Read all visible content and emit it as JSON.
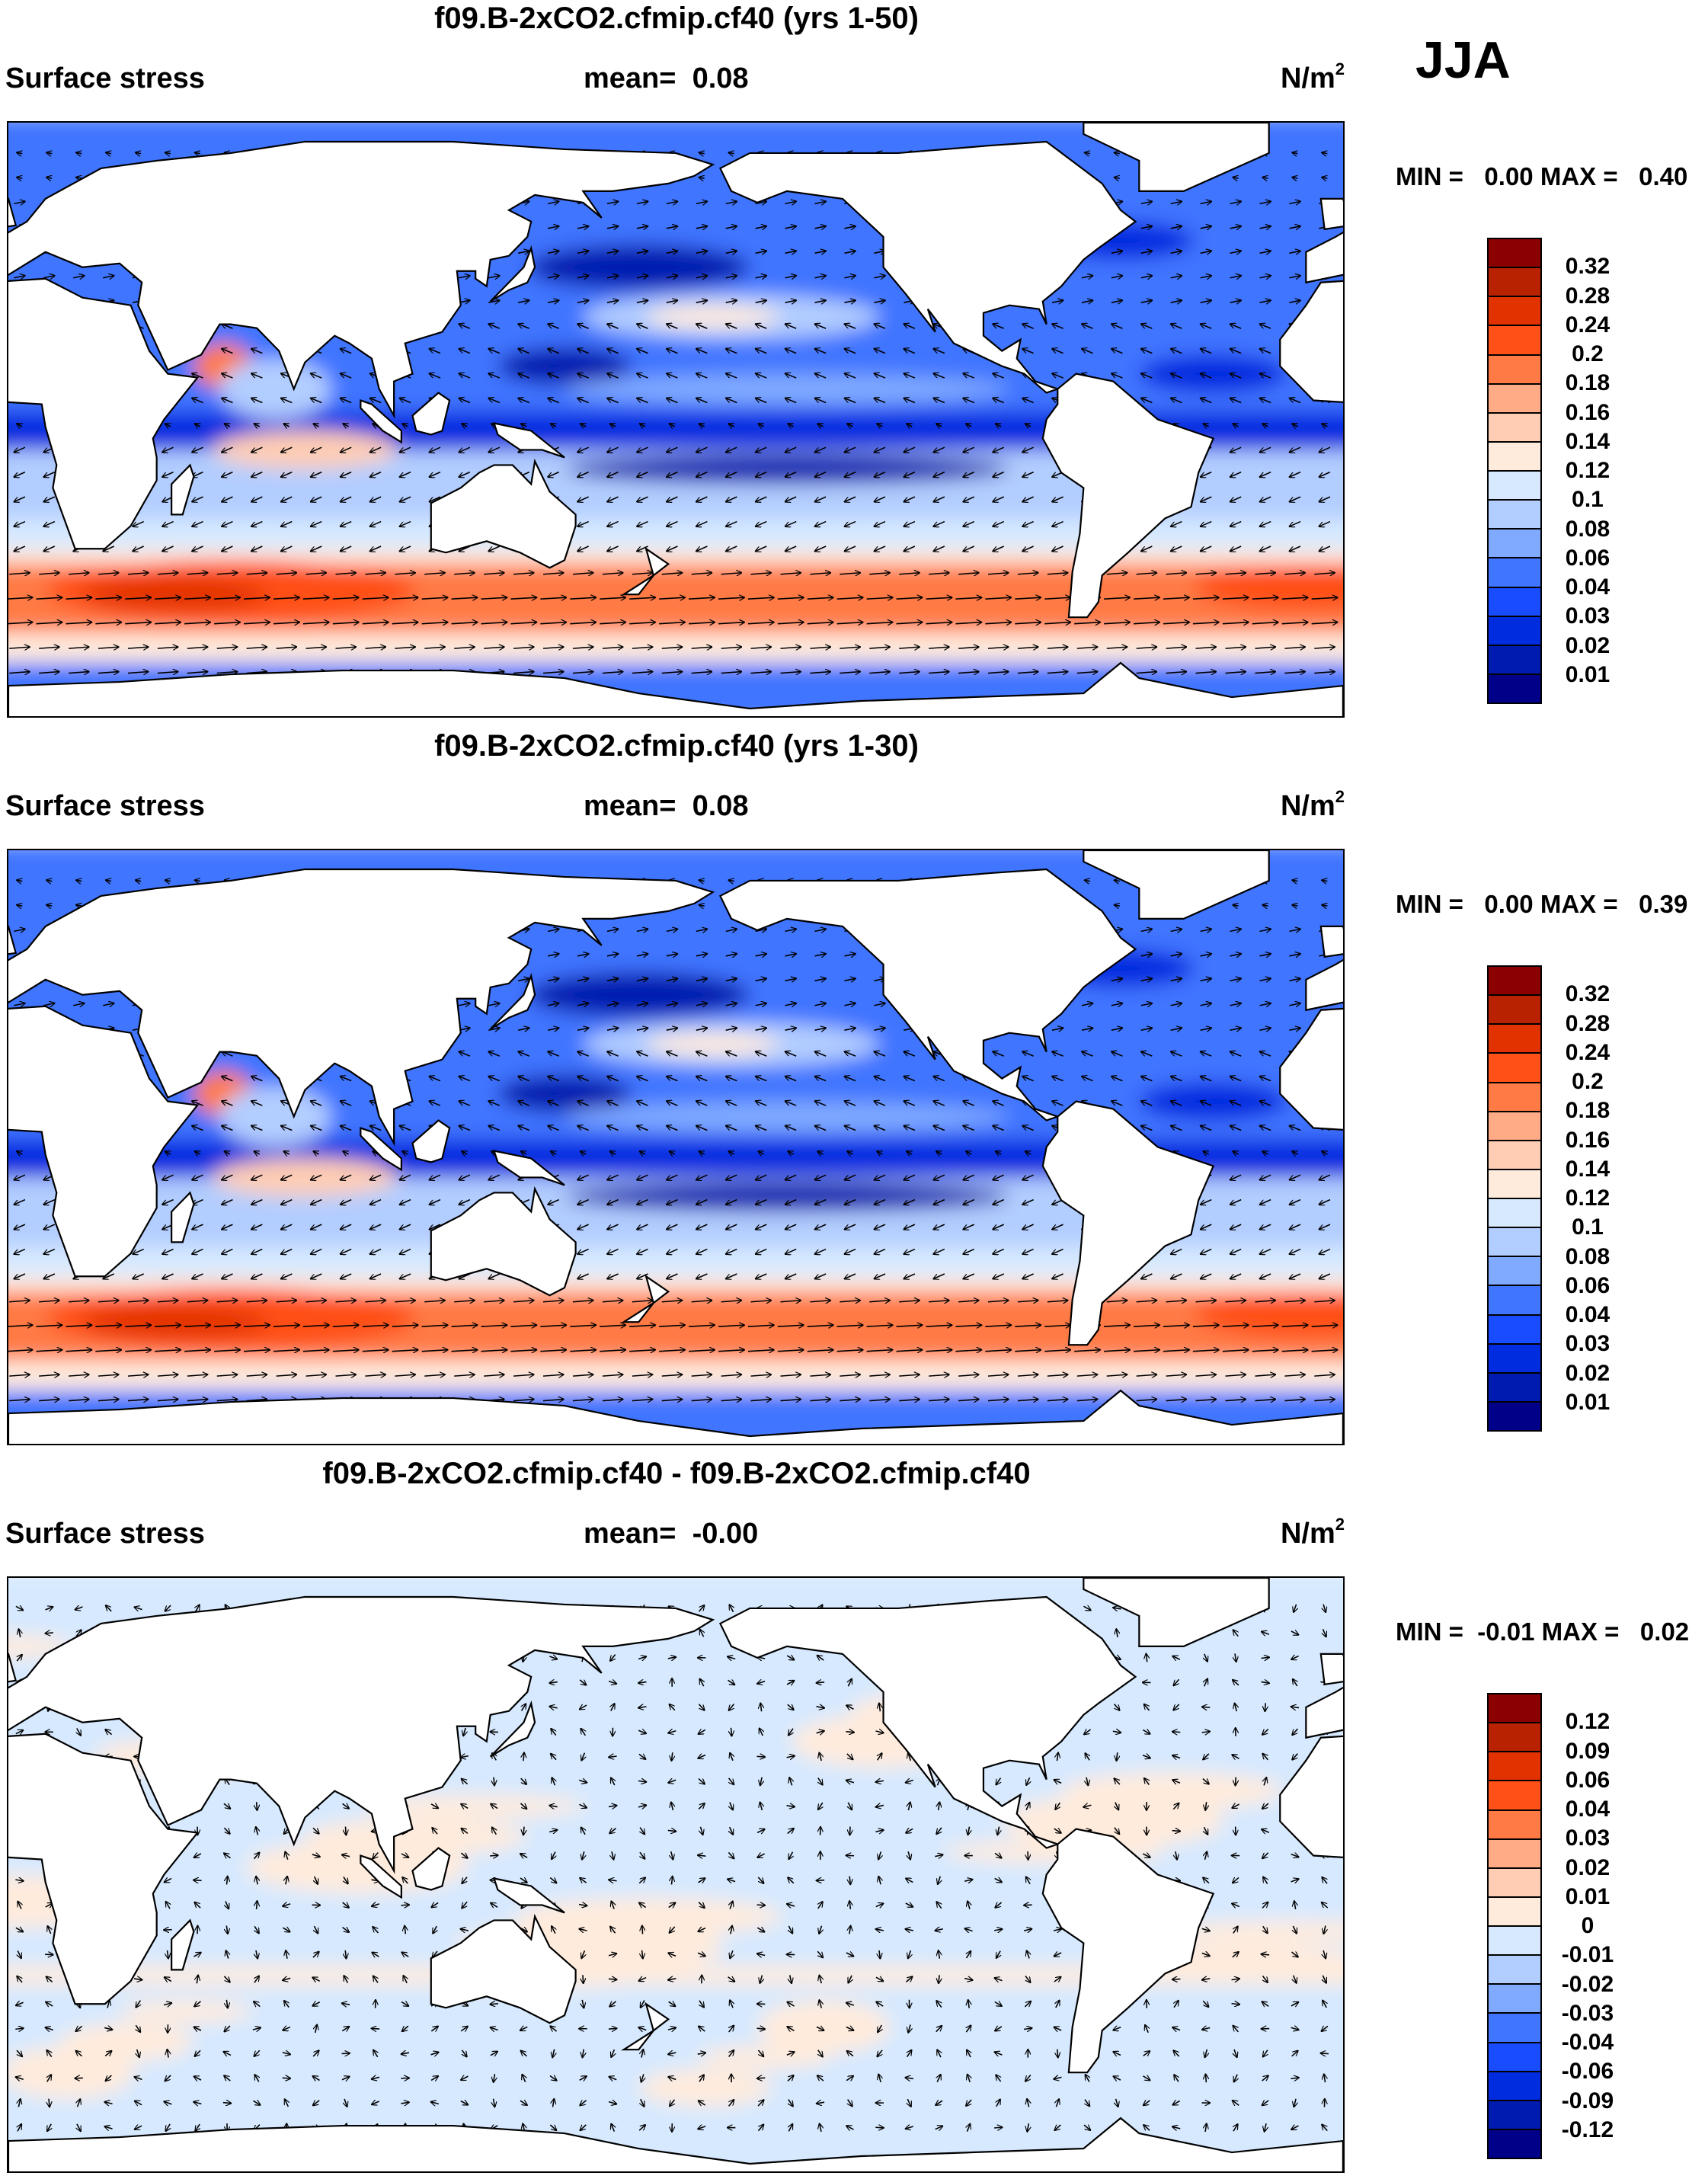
{
  "season": "JJA",
  "panels": [
    {
      "title": "f09.B-2xCO2.cfmip.cf40 (yrs 1-50)",
      "variable": "Surface stress",
      "mean_label": "mean=",
      "mean_value": "0.08",
      "units": "N/m",
      "units_exp": "2",
      "min_max": "MIN =   0.00 MAX =   0.40",
      "field": "abs",
      "colorbar_labels": [
        "0.32",
        "0.28",
        "0.24",
        "0.2",
        "0.18",
        "0.16",
        "0.14",
        "0.12",
        "0.1",
        "0.08",
        "0.06",
        "0.04",
        "0.03",
        "0.02",
        "0.01"
      ]
    },
    {
      "title": "f09.B-2xCO2.cfmip.cf40 (yrs 1-30)",
      "variable": "Surface stress",
      "mean_label": "mean=",
      "mean_value": "0.08",
      "units": "N/m",
      "units_exp": "2",
      "min_max": "MIN =   0.00 MAX =   0.39",
      "field": "abs",
      "colorbar_labels": [
        "0.32",
        "0.28",
        "0.24",
        "0.2",
        "0.18",
        "0.16",
        "0.14",
        "0.12",
        "0.1",
        "0.08",
        "0.06",
        "0.04",
        "0.03",
        "0.02",
        "0.01"
      ]
    },
    {
      "title": "f09.B-2xCO2.cfmip.cf40 - f09.B-2xCO2.cfmip.cf40",
      "variable": "Surface stress",
      "mean_label": "mean=",
      "mean_value": "-0.00",
      "units": "N/m",
      "units_exp": "2",
      "min_max": "MIN =  -0.01 MAX =   0.02",
      "field": "diff",
      "colorbar_labels": [
        "0.12",
        "0.09",
        "0.06",
        "0.04",
        "0.03",
        "0.02",
        "0.01",
        "0",
        "-0.01",
        "-0.02",
        "-0.03",
        "-0.04",
        "-0.06",
        "-0.09",
        "-0.12"
      ]
    }
  ],
  "colorbar_colors": [
    "#8b0000",
    "#b82200",
    "#e23200",
    "#ff5018",
    "#ff7a45",
    "#ffab85",
    "#ffcdb3",
    "#ffebdc",
    "#d6e9ff",
    "#b2cdff",
    "#80aaff",
    "#4075ff",
    "#1a4cff",
    "#002ce0",
    "#001cb0",
    "#000088"
  ]
}
